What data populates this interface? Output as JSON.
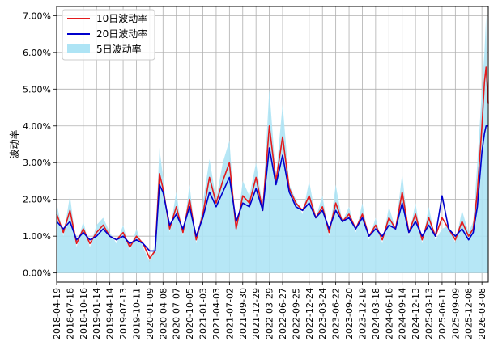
{
  "chart_data": {
    "type": "line",
    "title": "",
    "xlabel": "",
    "ylabel": "波动率",
    "ylim": [
      -0.0025,
      0.0725
    ],
    "y_ticks": [
      0.0,
      0.01,
      0.02,
      0.03,
      0.04,
      0.05,
      0.06,
      0.07
    ],
    "y_tick_labels": [
      "0.00%",
      "1.00%",
      "2.00%",
      "3.00%",
      "4.00%",
      "5.00%",
      "6.00%",
      "7.00%"
    ],
    "x_tick_labels": [
      "2018-04-19",
      "2018-07-18",
      "2018-10-16",
      "2019-01-14",
      "2019-04-14",
      "2019-07-13",
      "2019-10-11",
      "2020-01-09",
      "2020-04-08",
      "2020-07-07",
      "2020-10-05",
      "2021-01-03",
      "2021-04-03",
      "2021-07-02",
      "2021-09-30",
      "2021-12-29",
      "2022-03-29",
      "2022-06-27",
      "2022-09-25",
      "2022-12-24",
      "2023-03-24",
      "2023-06-22",
      "2023-09-20",
      "2023-12-19",
      "2024-03-18",
      "2024-06-16",
      "2024-09-14",
      "2024-12-13",
      "2025-03-13",
      "2025-06-11",
      "2025-09-09",
      "2025-12-08",
      "2026-03-08"
    ],
    "x_start": "2018-04-19",
    "x_end": "2026-04-20",
    "grid": true,
    "legend_position": "top-left",
    "x_points": [
      "2018-04-19",
      "2018-06-03",
      "2018-07-18",
      "2018-09-01",
      "2018-10-16",
      "2018-11-30",
      "2019-01-14",
      "2019-02-28",
      "2019-04-14",
      "2019-05-29",
      "2019-07-13",
      "2019-08-27",
      "2019-10-11",
      "2019-11-25",
      "2020-01-09",
      "2020-02-15",
      "2020-03-15",
      "2020-04-08",
      "2020-05-23",
      "2020-07-07",
      "2020-08-21",
      "2020-10-05",
      "2020-11-19",
      "2021-01-03",
      "2021-02-17",
      "2021-04-03",
      "2021-05-18",
      "2021-07-02",
      "2021-08-16",
      "2021-09-30",
      "2021-11-14",
      "2021-12-29",
      "2022-02-12",
      "2022-03-29",
      "2022-05-13",
      "2022-06-27",
      "2022-08-11",
      "2022-09-25",
      "2022-11-09",
      "2022-12-24",
      "2023-02-07",
      "2023-03-24",
      "2023-05-08",
      "2023-06-22",
      "2023-08-06",
      "2023-09-20",
      "2023-11-04",
      "2023-12-19",
      "2024-02-02",
      "2024-03-18",
      "2024-05-02",
      "2024-06-16",
      "2024-07-31",
      "2024-09-14",
      "2024-10-29",
      "2024-12-13",
      "2025-01-27",
      "2025-03-13",
      "2025-04-27",
      "2025-06-11",
      "2025-07-26",
      "2025-09-09",
      "2025-10-24",
      "2025-12-08",
      "2026-01-08",
      "2026-02-05",
      "2026-03-08",
      "2026-03-25",
      "2026-04-05",
      "2026-04-20"
    ],
    "series": [
      {
        "name": "10日波动率",
        "color": "#e41a1c",
        "values": [
          0.016,
          0.011,
          0.017,
          0.008,
          0.012,
          0.008,
          0.011,
          0.013,
          0.01,
          0.009,
          0.011,
          0.007,
          0.01,
          0.008,
          0.004,
          0.006,
          0.027,
          0.023,
          0.012,
          0.018,
          0.011,
          0.02,
          0.009,
          0.016,
          0.026,
          0.019,
          0.025,
          0.03,
          0.012,
          0.021,
          0.019,
          0.026,
          0.017,
          0.04,
          0.025,
          0.037,
          0.023,
          0.019,
          0.017,
          0.021,
          0.015,
          0.018,
          0.011,
          0.019,
          0.014,
          0.016,
          0.012,
          0.016,
          0.01,
          0.013,
          0.009,
          0.015,
          0.012,
          0.022,
          0.011,
          0.016,
          0.009,
          0.015,
          0.01,
          0.015,
          0.012,
          0.009,
          0.014,
          0.01,
          0.012,
          0.022,
          0.04,
          0.052,
          0.056,
          0.046
        ]
      },
      {
        "name": "20日波动率",
        "color": "#0000cc",
        "values": [
          0.014,
          0.012,
          0.014,
          0.009,
          0.011,
          0.009,
          0.01,
          0.012,
          0.01,
          0.009,
          0.01,
          0.008,
          0.009,
          0.008,
          0.006,
          0.006,
          0.024,
          0.022,
          0.013,
          0.016,
          0.012,
          0.018,
          0.01,
          0.015,
          0.022,
          0.018,
          0.022,
          0.026,
          0.014,
          0.019,
          0.018,
          0.023,
          0.017,
          0.034,
          0.024,
          0.032,
          0.022,
          0.018,
          0.017,
          0.019,
          0.015,
          0.017,
          0.012,
          0.017,
          0.014,
          0.015,
          0.012,
          0.015,
          0.01,
          0.012,
          0.01,
          0.013,
          0.012,
          0.019,
          0.011,
          0.014,
          0.01,
          0.013,
          0.01,
          0.021,
          0.012,
          0.01,
          0.012,
          0.009,
          0.011,
          0.018,
          0.033,
          0.038,
          0.04,
          0.04
        ]
      },
      {
        "name": "5日波动率",
        "color": "#aee4f5",
        "values": [
          0.019,
          0.01,
          0.021,
          0.007,
          0.014,
          0.007,
          0.013,
          0.015,
          0.011,
          0.008,
          0.013,
          0.006,
          0.012,
          0.007,
          0.003,
          0.008,
          0.034,
          0.026,
          0.011,
          0.022,
          0.01,
          0.024,
          0.008,
          0.019,
          0.031,
          0.02,
          0.03,
          0.036,
          0.011,
          0.025,
          0.021,
          0.03,
          0.018,
          0.05,
          0.026,
          0.046,
          0.024,
          0.02,
          0.016,
          0.025,
          0.015,
          0.021,
          0.01,
          0.024,
          0.014,
          0.018,
          0.011,
          0.019,
          0.009,
          0.015,
          0.008,
          0.018,
          0.012,
          0.027,
          0.01,
          0.019,
          0.008,
          0.018,
          0.009,
          0.012,
          0.013,
          0.008,
          0.017,
          0.011,
          0.014,
          0.03,
          0.05,
          0.06,
          0.07,
          0.035
        ]
      }
    ]
  }
}
